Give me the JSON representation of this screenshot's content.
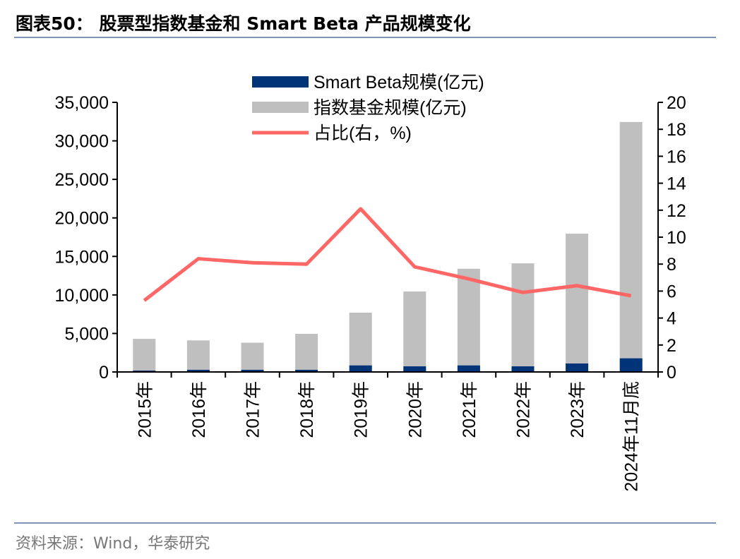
{
  "title": "图表50：  股票型指数基金和 Smart Beta 产品规模变化",
  "source": "资料来源：Wind，华泰研究",
  "chart_data": {
    "type": "bar+line",
    "categories": [
      "2015年",
      "2016年",
      "2017年",
      "2018年",
      "2019年",
      "2020年",
      "2021年",
      "2022年",
      "2023年",
      "2024年11月底"
    ],
    "series": [
      {
        "name": "Smart Beta规模(亿元)",
        "type": "bar",
        "axis": "left",
        "color": "#003478",
        "values": [
          180,
          280,
          280,
          280,
          850,
          730,
          850,
          730,
          1100,
          1770
        ]
      },
      {
        "name": "指数基金规模(亿元)",
        "type": "bar",
        "axis": "left",
        "color": "#bfbfbf",
        "values": [
          4300,
          4100,
          3800,
          4950,
          7700,
          10450,
          13400,
          14100,
          17950,
          32450
        ]
      },
      {
        "name": "占比(右，%)",
        "type": "line",
        "axis": "right",
        "color": "#ff6666",
        "values": [
          5.3,
          8.4,
          8.1,
          8.0,
          12.1,
          7.8,
          6.9,
          5.9,
          6.4,
          5.65
        ]
      }
    ],
    "y_left": {
      "range": [
        0,
        35000
      ],
      "ticks": [
        "0",
        "5,000",
        "10,000",
        "15,000",
        "20,000",
        "25,000",
        "30,000",
        "35,000"
      ]
    },
    "y_right": {
      "range": [
        0,
        20
      ],
      "ticks": [
        "0",
        "2",
        "4",
        "6",
        "8",
        "10",
        "12",
        "14",
        "16",
        "18",
        "20"
      ]
    },
    "legend_placement": "top-center",
    "grid": false
  }
}
